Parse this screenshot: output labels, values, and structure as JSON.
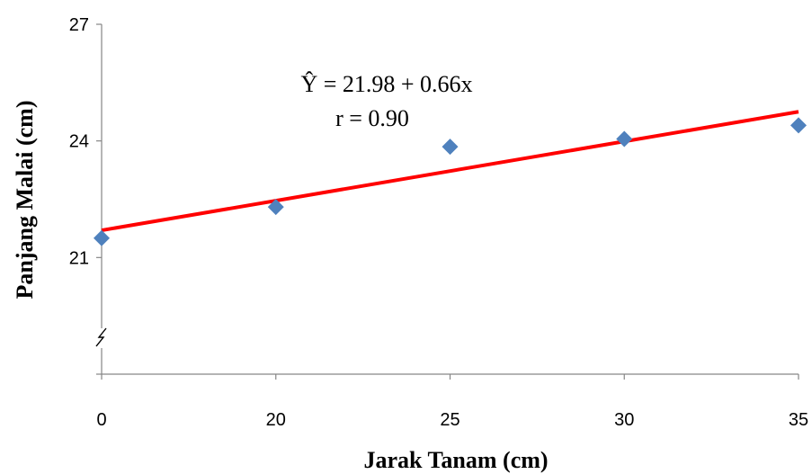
{
  "chart_data": {
    "type": "scatter",
    "title": "",
    "xlabel": "Jarak Tanam (cm)",
    "ylabel": "Panjang Malai (cm)",
    "x_categories": [
      "0",
      "20",
      "25",
      "30",
      "35"
    ],
    "y_ticks": [
      "27",
      "24",
      "21"
    ],
    "ylim": [
      18,
      27
    ],
    "axis_break": true,
    "grid": false,
    "series": [
      {
        "marker": "diamond",
        "color": "#4F81BD",
        "x": [
          "0",
          "20",
          "25",
          "30",
          "35"
        ],
        "y": [
          21.5,
          22.3,
          23.85,
          24.05,
          24.4
        ]
      }
    ],
    "trendline": {
      "color": "#FF0000",
      "y_start": 21.7,
      "y_end": 24.75
    },
    "annotations": [
      "Ŷ = 21.98 + 0.66x",
      "r = 0.90"
    ]
  }
}
